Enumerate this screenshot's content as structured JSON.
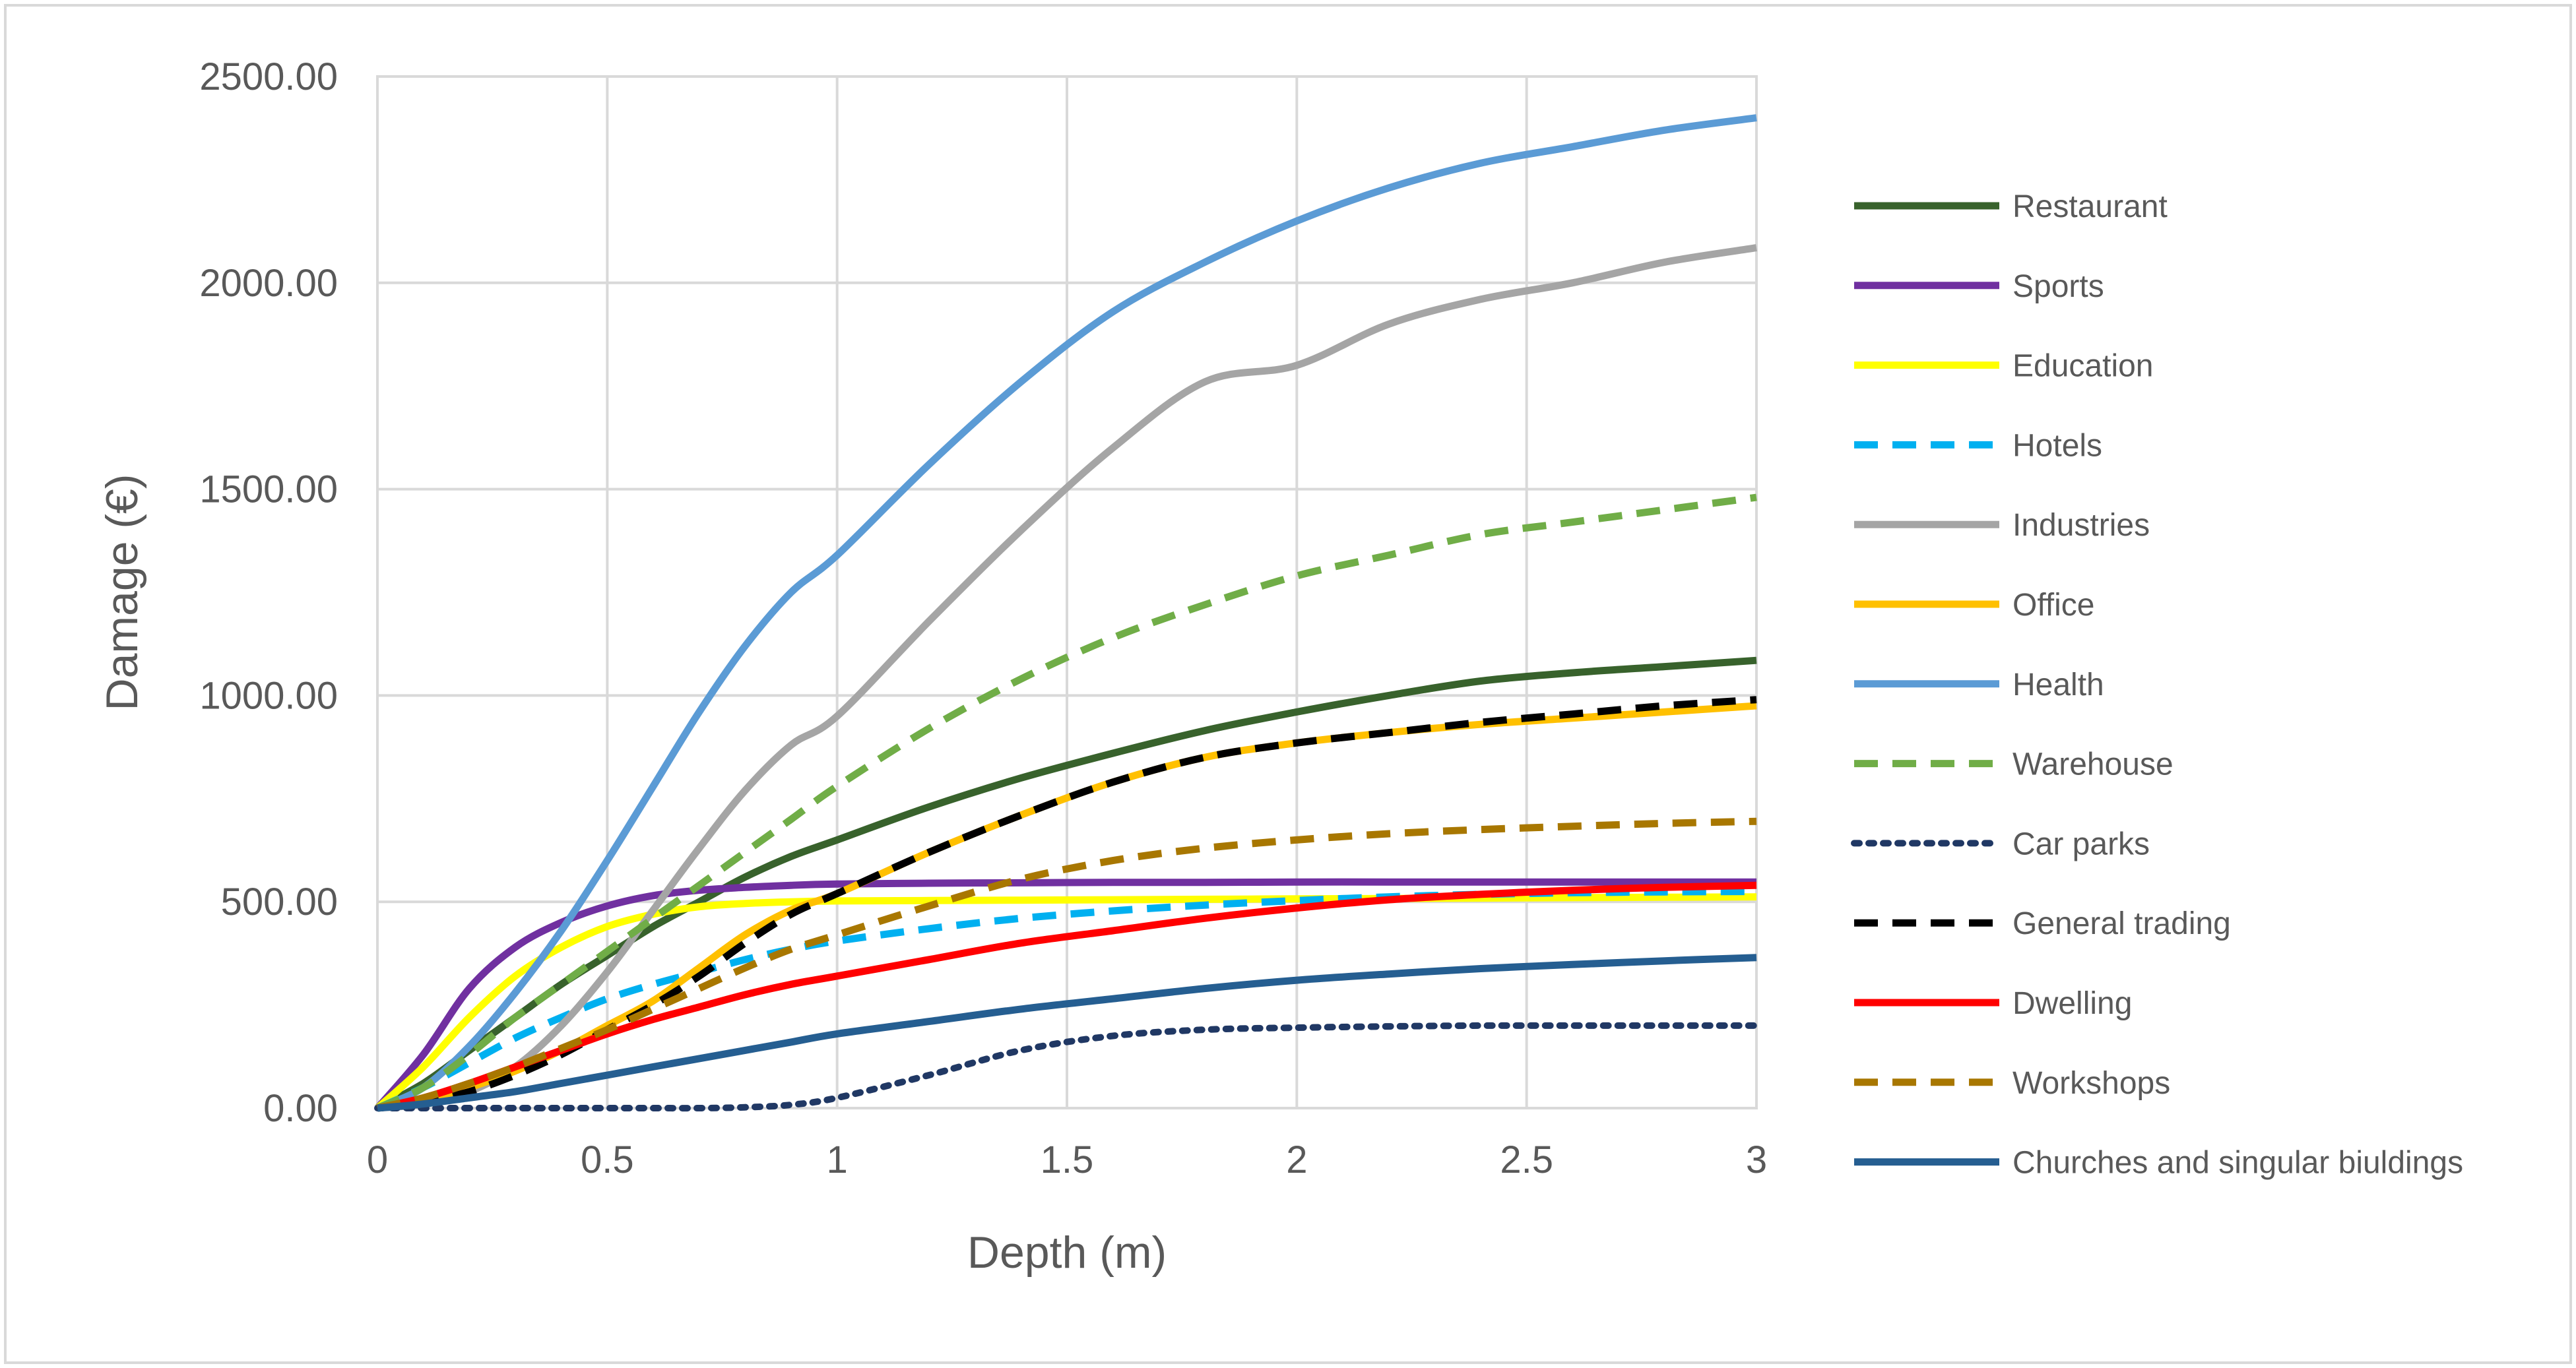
{
  "chart_data": {
    "type": "line",
    "title": "",
    "xlabel": "Depth (m)",
    "ylabel": "Damage (€)",
    "xlim": [
      0,
      3
    ],
    "ylim": [
      0,
      2500
    ],
    "xticks": [
      0,
      0.5,
      1,
      1.5,
      2,
      2.5,
      3
    ],
    "xtick_labels": [
      "0",
      "0.5",
      "1",
      "1.5",
      "2",
      "2.5",
      "3"
    ],
    "yticks": [
      0,
      500,
      1000,
      1500,
      2000,
      2500
    ],
    "ytick_labels": [
      "0.00",
      "500.00",
      "1000.00",
      "1500.00",
      "2000.00",
      "2500.00"
    ],
    "grid": true,
    "legend_position": "right",
    "x": [
      0,
      0.1,
      0.2,
      0.3,
      0.4,
      0.5,
      0.6,
      0.7,
      0.8,
      0.9,
      1.0,
      1.2,
      1.4,
      1.6,
      1.8,
      2.0,
      2.2,
      2.4,
      2.6,
      2.8,
      3.0
    ],
    "series": [
      {
        "name": "Restaurant",
        "color": "#38622C",
        "dash": "solid",
        "values": [
          0,
          60,
          140,
          220,
          300,
          370,
          440,
          500,
          560,
          610,
          650,
          730,
          800,
          860,
          915,
          960,
          1000,
          1035,
          1055,
          1070,
          1085
        ]
      },
      {
        "name": "Sports",
        "color": "#7030A0",
        "dash": "solid",
        "values": [
          0,
          130,
          290,
          390,
          450,
          490,
          515,
          528,
          535,
          540,
          543,
          545,
          546,
          547,
          547,
          548,
          548,
          548,
          548,
          548,
          548
        ]
      },
      {
        "name": "Education",
        "color": "#FFFF00",
        "dash": "solid",
        "values": [
          0,
          100,
          220,
          320,
          390,
          440,
          470,
          488,
          496,
          500,
          502,
          503,
          504,
          505,
          506,
          507,
          508,
          509,
          510,
          511,
          512
        ]
      },
      {
        "name": "Hotels",
        "color": "#00B0F0",
        "dash": "dash",
        "values": [
          0,
          50,
          110,
          170,
          220,
          265,
          300,
          330,
          360,
          385,
          405,
          435,
          460,
          478,
          492,
          503,
          512,
          518,
          522,
          524,
          525
        ]
      },
      {
        "name": "Industries",
        "color": "#A5A5A5",
        "dash": "solid",
        "values": [
          0,
          10,
          40,
          100,
          200,
          330,
          480,
          630,
          770,
          880,
          950,
          1180,
          1400,
          1600,
          1760,
          1800,
          1900,
          1960,
          2000,
          2050,
          2085
        ]
      },
      {
        "name": "Office",
        "color": "#FFC000",
        "dash": "solid",
        "values": [
          0,
          20,
          50,
          90,
          140,
          200,
          260,
          340,
          420,
          480,
          520,
          620,
          710,
          790,
          850,
          885,
          910,
          930,
          945,
          960,
          975
        ]
      },
      {
        "name": "Health",
        "color": "#5B9BD5",
        "dash": "solid",
        "values": [
          0,
          50,
          150,
          280,
          430,
          600,
          780,
          960,
          1120,
          1250,
          1340,
          1560,
          1760,
          1930,
          2050,
          2150,
          2230,
          2290,
          2330,
          2370,
          2400
        ]
      },
      {
        "name": "Warehouse",
        "color": "#70AD47",
        "dash": "dash",
        "values": [
          0,
          50,
          130,
          220,
          300,
          380,
          460,
          540,
          620,
          700,
          780,
          920,
          1040,
          1140,
          1220,
          1290,
          1340,
          1390,
          1420,
          1450,
          1480
        ]
      },
      {
        "name": "Car parks",
        "color": "#203864",
        "dash": "dot",
        "values": [
          0,
          0,
          0,
          0,
          0,
          0,
          0,
          0,
          2,
          8,
          25,
          80,
          140,
          175,
          190,
          195,
          198,
          200,
          200,
          200,
          200
        ]
      },
      {
        "name": "General trading",
        "color": "#000000",
        "dash": "dash",
        "values": [
          0,
          15,
          40,
          80,
          130,
          190,
          250,
          320,
          400,
          470,
          520,
          620,
          710,
          790,
          850,
          885,
          910,
          935,
          955,
          975,
          990
        ]
      },
      {
        "name": "Dwelling",
        "color": "#FF0000",
        "dash": "solid",
        "values": [
          0,
          25,
          60,
          100,
          140,
          180,
          215,
          245,
          275,
          300,
          320,
          360,
          400,
          430,
          460,
          485,
          505,
          518,
          528,
          535,
          540
        ]
      },
      {
        "name": "Workshops",
        "color": "#A87700",
        "dash": "dash",
        "values": [
          0,
          25,
          60,
          100,
          145,
          190,
          240,
          290,
          340,
          385,
          420,
          490,
          555,
          600,
          630,
          650,
          665,
          675,
          683,
          690,
          695
        ]
      },
      {
        "name": "Churches and singular biuldings",
        "color": "#255E91",
        "dash": "solid",
        "values": [
          0,
          10,
          25,
          40,
          60,
          80,
          100,
          120,
          140,
          160,
          180,
          210,
          240,
          265,
          290,
          310,
          325,
          338,
          348,
          357,
          365
        ]
      }
    ]
  }
}
